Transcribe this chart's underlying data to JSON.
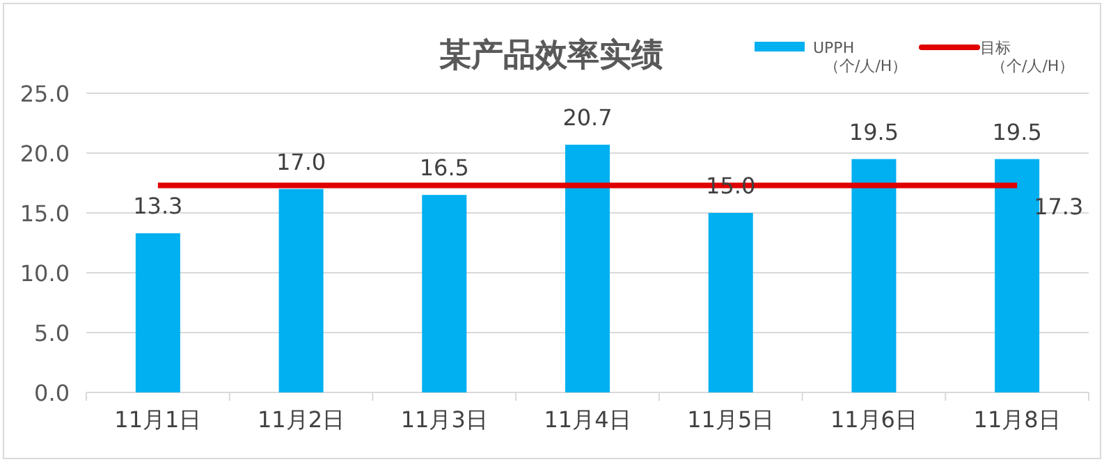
{
  "chart_data": {
    "type": "bar",
    "title": "某产品效率实绩",
    "categories": [
      "11月1日",
      "11月2日",
      "11月3日",
      "11月4日",
      "11月5日",
      "11月6日",
      "11月8日"
    ],
    "series": [
      {
        "name": "UPPH（个/人/H）",
        "color": "#00b0f0",
        "values": [
          13.3,
          17.0,
          16.5,
          20.7,
          15.0,
          19.5,
          19.5
        ],
        "value_labels": [
          "13.3",
          "17.0",
          "16.5",
          "20.7",
          "15.0",
          "19.5",
          "19.5"
        ]
      },
      {
        "name": "目标（个/人/H）",
        "type": "line",
        "color": "#e00000",
        "values": [
          17.3,
          17.3,
          17.3,
          17.3,
          17.3,
          17.3,
          17.3
        ],
        "value_labels": [
          null,
          null,
          null,
          null,
          null,
          null,
          "17.3"
        ],
        "marker": "none",
        "line_style": "solid"
      }
    ],
    "ylim": [
      0,
      25
    ],
    "yticks": [
      {
        "value": 0,
        "label": "0.0"
      },
      {
        "value": 5,
        "label": "5.0"
      },
      {
        "value": 10,
        "label": "10.0"
      },
      {
        "value": 15,
        "label": "15.0"
      },
      {
        "value": 20,
        "label": "20.0"
      },
      {
        "value": 25,
        "label": "25.0"
      }
    ],
    "grid": "y",
    "legend": "top right"
  }
}
